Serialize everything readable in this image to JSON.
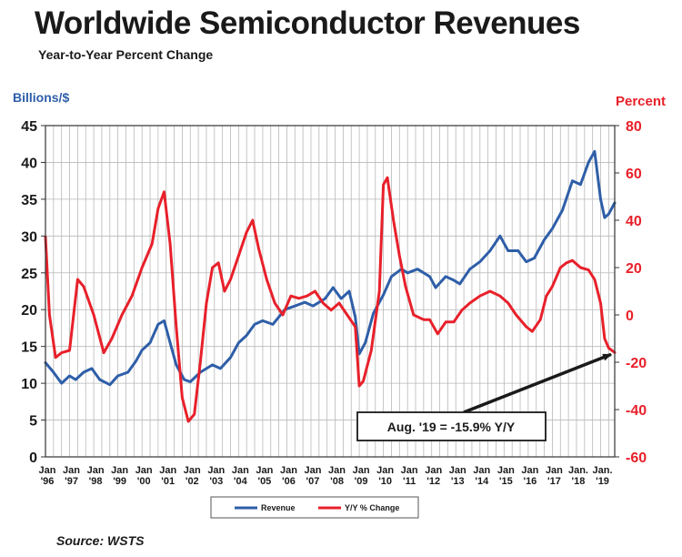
{
  "chart_data": {
    "type": "line",
    "title": "Worldwide Semiconductor Revenues",
    "subtitle": "Year-to-Year Percent Change",
    "ylabel_left": "Billions/$",
    "ylabel_right": "Percent",
    "source": "Source: WSTS",
    "ylim_left": [
      0,
      45
    ],
    "ylim_right": [
      -60,
      80
    ],
    "yticks_left": [
      0,
      5,
      10,
      15,
      20,
      25,
      30,
      35,
      40,
      45
    ],
    "yticks_right": [
      -60,
      -40,
      -20,
      0,
      20,
      40,
      60,
      80
    ],
    "x_tick_labels": [
      [
        "Jan",
        "'96"
      ],
      [
        "Jan",
        "'97"
      ],
      [
        "Jan",
        "'98"
      ],
      [
        "Jan",
        "'99"
      ],
      [
        "Jan",
        "'00"
      ],
      [
        "Jan",
        "'01"
      ],
      [
        "Jan",
        "'02"
      ],
      [
        "Jan",
        "'03"
      ],
      [
        "Jan",
        "'04"
      ],
      [
        "Jan",
        "'05"
      ],
      [
        "Jan",
        "'06"
      ],
      [
        "Jan",
        "'07"
      ],
      [
        "Jan",
        "'08"
      ],
      [
        "Jan",
        "'09"
      ],
      [
        "Jan",
        "'10"
      ],
      [
        "Jan",
        "'11"
      ],
      [
        "Jan",
        "'12"
      ],
      [
        "Jan",
        "'13"
      ],
      [
        "Jan",
        "'14"
      ],
      [
        "Jan",
        "'15"
      ],
      [
        "Jan",
        "'16"
      ],
      [
        "Jan",
        "'17"
      ],
      [
        "Jan.",
        "'18"
      ],
      [
        "Jan.",
        "'19"
      ]
    ],
    "x_range": [
      "1996-01",
      "2019-08"
    ],
    "grid": true,
    "series": [
      {
        "name": "Revenue",
        "axis": "left",
        "color": "#2e5ea8",
        "points": [
          [
            "1996-01",
            12.8
          ],
          [
            "1996-05",
            11.5
          ],
          [
            "1996-09",
            10.0
          ],
          [
            "1997-01",
            11.0
          ],
          [
            "1997-04",
            10.5
          ],
          [
            "1997-08",
            11.5
          ],
          [
            "1997-12",
            12.0
          ],
          [
            "1998-04",
            10.5
          ],
          [
            "1998-09",
            9.8
          ],
          [
            "1999-01",
            11.0
          ],
          [
            "1999-06",
            11.5
          ],
          [
            "1999-10",
            13.0
          ],
          [
            "2000-01",
            14.5
          ],
          [
            "2000-05",
            15.5
          ],
          [
            "2000-09",
            18.0
          ],
          [
            "2000-12",
            18.5
          ],
          [
            "2001-03",
            15.5
          ],
          [
            "2001-06",
            12.5
          ],
          [
            "2001-10",
            10.5
          ],
          [
            "2002-01",
            10.2
          ],
          [
            "2002-06",
            11.5
          ],
          [
            "2002-12",
            12.5
          ],
          [
            "2003-04",
            12.0
          ],
          [
            "2003-09",
            13.5
          ],
          [
            "2004-01",
            15.5
          ],
          [
            "2004-05",
            16.5
          ],
          [
            "2004-09",
            18.0
          ],
          [
            "2005-01",
            18.5
          ],
          [
            "2005-06",
            18.0
          ],
          [
            "2005-12",
            20.0
          ],
          [
            "2006-05",
            20.5
          ],
          [
            "2006-10",
            21.0
          ],
          [
            "2007-02",
            20.5
          ],
          [
            "2007-08",
            21.5
          ],
          [
            "2007-12",
            23.0
          ],
          [
            "2008-04",
            21.5
          ],
          [
            "2008-08",
            22.5
          ],
          [
            "2008-11",
            19.0
          ],
          [
            "2009-01",
            14.0
          ],
          [
            "2009-04",
            15.5
          ],
          [
            "2009-08",
            19.5
          ],
          [
            "2010-01",
            22.0
          ],
          [
            "2010-05",
            24.5
          ],
          [
            "2010-10",
            25.5
          ],
          [
            "2011-01",
            25.0
          ],
          [
            "2011-06",
            25.5
          ],
          [
            "2011-12",
            24.5
          ],
          [
            "2012-03",
            23.0
          ],
          [
            "2012-08",
            24.5
          ],
          [
            "2012-12",
            24.0
          ],
          [
            "2013-03",
            23.5
          ],
          [
            "2013-08",
            25.5
          ],
          [
            "2014-01",
            26.5
          ],
          [
            "2014-06",
            28.0
          ],
          [
            "2014-11",
            30.0
          ],
          [
            "2015-03",
            28.0
          ],
          [
            "2015-08",
            28.0
          ],
          [
            "2015-12",
            26.5
          ],
          [
            "2016-04",
            27.0
          ],
          [
            "2016-09",
            29.5
          ],
          [
            "2017-01",
            31.0
          ],
          [
            "2017-06",
            33.5
          ],
          [
            "2017-11",
            37.5
          ],
          [
            "2018-03",
            37.0
          ],
          [
            "2018-07",
            40.0
          ],
          [
            "2018-10",
            41.5
          ],
          [
            "2019-01",
            35.0
          ],
          [
            "2019-03",
            32.5
          ],
          [
            "2019-05",
            33.0
          ],
          [
            "2019-08",
            34.5
          ]
        ]
      },
      {
        "name": "Y/Y % Change",
        "axis": "right",
        "color": "#e8202a",
        "points": [
          [
            "1996-01",
            33
          ],
          [
            "1996-03",
            0
          ],
          [
            "1996-06",
            -18
          ],
          [
            "1996-09",
            -16
          ],
          [
            "1997-01",
            -15
          ],
          [
            "1997-05",
            15
          ],
          [
            "1997-08",
            12
          ],
          [
            "1998-01",
            0
          ],
          [
            "1998-06",
            -16
          ],
          [
            "1998-10",
            -10
          ],
          [
            "1999-03",
            0
          ],
          [
            "1999-08",
            8
          ],
          [
            "2000-01",
            20
          ],
          [
            "2000-06",
            30
          ],
          [
            "2000-09",
            45
          ],
          [
            "2000-12",
            52
          ],
          [
            "2001-03",
            30
          ],
          [
            "2001-06",
            -5
          ],
          [
            "2001-09",
            -35
          ],
          [
            "2001-12",
            -45
          ],
          [
            "2002-03",
            -42
          ],
          [
            "2002-06",
            -20
          ],
          [
            "2002-09",
            5
          ],
          [
            "2002-12",
            20
          ],
          [
            "2003-03",
            22
          ],
          [
            "2003-06",
            10
          ],
          [
            "2003-09",
            15
          ],
          [
            "2004-01",
            25
          ],
          [
            "2004-05",
            35
          ],
          [
            "2004-08",
            40
          ],
          [
            "2004-11",
            28
          ],
          [
            "2005-03",
            15
          ],
          [
            "2005-07",
            5
          ],
          [
            "2005-11",
            0
          ],
          [
            "2006-03",
            8
          ],
          [
            "2006-07",
            7
          ],
          [
            "2006-11",
            8
          ],
          [
            "2007-03",
            10
          ],
          [
            "2007-07",
            5
          ],
          [
            "2007-11",
            2
          ],
          [
            "2008-03",
            5
          ],
          [
            "2008-07",
            0
          ],
          [
            "2008-11",
            -5
          ],
          [
            "2009-01",
            -30
          ],
          [
            "2009-03",
            -28
          ],
          [
            "2009-07",
            -15
          ],
          [
            "2009-11",
            10
          ],
          [
            "2010-01",
            55
          ],
          [
            "2010-03",
            58
          ],
          [
            "2010-06",
            40
          ],
          [
            "2010-09",
            25
          ],
          [
            "2010-12",
            12
          ],
          [
            "2011-04",
            0
          ],
          [
            "2011-09",
            -2
          ],
          [
            "2011-12",
            -2
          ],
          [
            "2012-04",
            -8
          ],
          [
            "2012-08",
            -3
          ],
          [
            "2012-12",
            -3
          ],
          [
            "2013-04",
            2
          ],
          [
            "2013-08",
            5
          ],
          [
            "2014-01",
            8
          ],
          [
            "2014-06",
            10
          ],
          [
            "2014-11",
            8
          ],
          [
            "2015-03",
            5
          ],
          [
            "2015-07",
            0
          ],
          [
            "2015-12",
            -5
          ],
          [
            "2016-03",
            -7
          ],
          [
            "2016-07",
            -2
          ],
          [
            "2016-10",
            8
          ],
          [
            "2017-01",
            12
          ],
          [
            "2017-05",
            20
          ],
          [
            "2017-08",
            22
          ],
          [
            "2017-11",
            23
          ],
          [
            "2018-03",
            20
          ],
          [
            "2018-07",
            19
          ],
          [
            "2018-10",
            15
          ],
          [
            "2019-01",
            5
          ],
          [
            "2019-03",
            -10
          ],
          [
            "2019-05",
            -14
          ],
          [
            "2019-08",
            -15.9
          ]
        ]
      }
    ],
    "annotation": {
      "text": "Aug. '19 = -15.9% Y/Y",
      "target_date": "2019-08",
      "target_value": -15.9,
      "target_axis": "right"
    },
    "legend": {
      "placement": "bottom-center",
      "items": [
        "Revenue",
        "Y/Y % Change"
      ]
    }
  }
}
